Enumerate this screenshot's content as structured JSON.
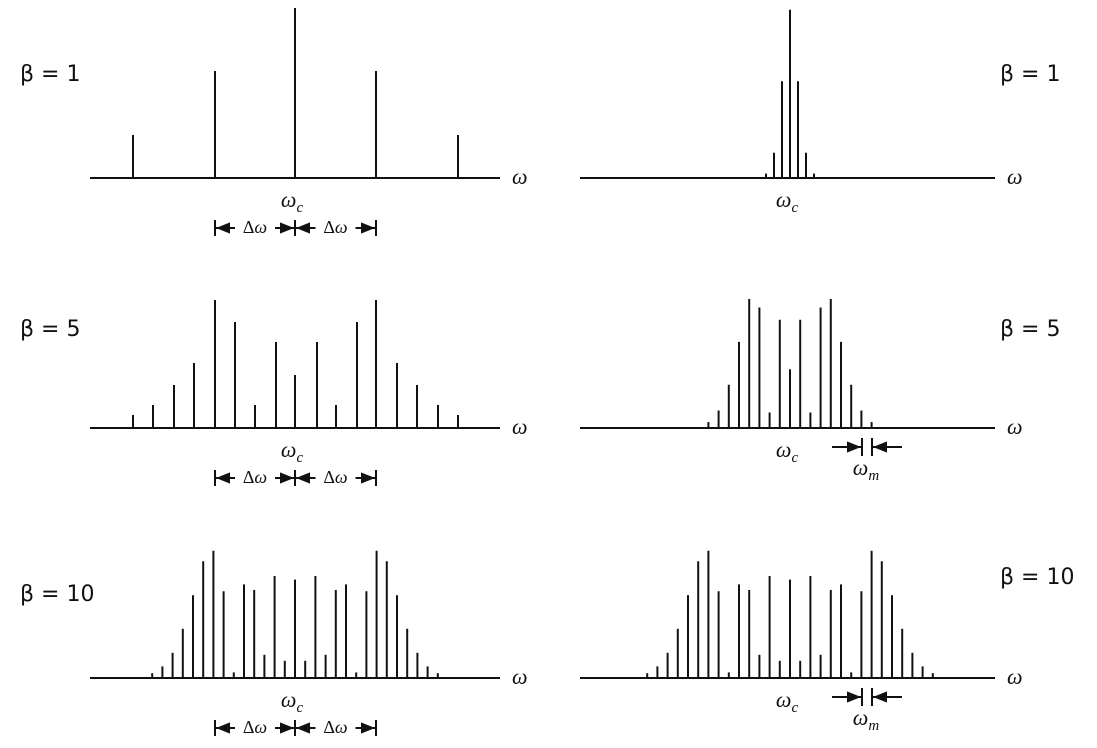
{
  "panels": [
    {
      "beta": "β = 1",
      "axis": "ω",
      "center": {
        "base": "ω",
        "sub": "c"
      },
      "spacing": [
        "Δ",
        "ω",
        "Δ",
        "ω"
      ]
    },
    {
      "beta": "β = 1",
      "axis": "ω",
      "center": {
        "base": "ω",
        "sub": "c"
      }
    },
    {
      "beta": "β = 5",
      "axis": "ω",
      "center": {
        "base": "ω",
        "sub": "c"
      },
      "spacing": [
        "Δ",
        "ω",
        "Δ",
        "ω"
      ]
    },
    {
      "beta": "β = 5",
      "axis": "ω",
      "center": {
        "base": "ω",
        "sub": "c"
      },
      "marker": {
        "base": "ω",
        "sub": "m"
      }
    },
    {
      "beta": "β = 10",
      "axis": "ω",
      "center": {
        "base": "ω",
        "sub": "c"
      },
      "spacing": [
        "Δ",
        "ω",
        "Δ",
        "ω"
      ]
    },
    {
      "beta": "β = 10",
      "axis": "ω",
      "center": {
        "base": "ω",
        "sub": "c"
      },
      "marker": {
        "base": "ω",
        "sub": "m"
      }
    }
  ]
}
